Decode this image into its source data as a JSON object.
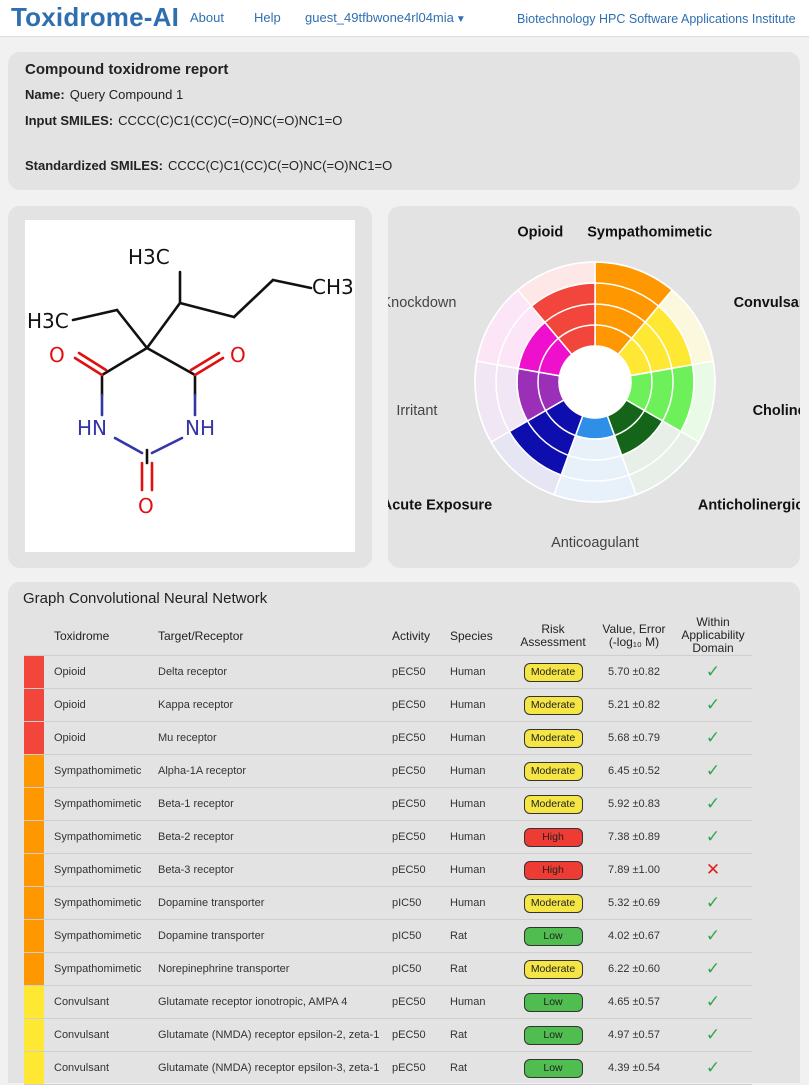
{
  "nav": {
    "brand": "Toxidrome-AI",
    "about": "About",
    "help": "Help",
    "user": "guest_49tfbwone4rl04mia",
    "institute": "Biotechnology HPC Software Applications Institute"
  },
  "report": {
    "title": "Compound toxidrome report",
    "name_label": "Name:",
    "name_value": "Query Compound 1",
    "input_label": "Input SMILES:",
    "input_value": "CCCC(C)C1(CC)C(=O)NC(=O)NC1=O",
    "std_label": "Standardized SMILES:",
    "std_value": "CCCC(C)C1(CC)C(=O)NC(=O)NC1=O"
  },
  "molecule": {
    "atoms": {
      "ch3_top": "H3C",
      "ch3_right": "CH3",
      "ch3_left": "H3C",
      "o_left": "O",
      "o_right": "O",
      "o_bottom": "O",
      "hn": "HN",
      "nh": "NH"
    }
  },
  "chart_data": {
    "type": "polar-area",
    "categories": [
      "Sympathomimetic",
      "Convulsant",
      "Cholinergic",
      "Anticholinergic",
      "Anticoagulant",
      "Acute Exposure",
      "Irritant",
      "Knockdown",
      "Opioid"
    ],
    "bold_categories": [
      "Sympathomimetic",
      "Convulsant",
      "Cholinergic",
      "Anticholinergic",
      "Acute Exposure",
      "Opioid"
    ],
    "rings": 4,
    "values": [
      4,
      3,
      3,
      2,
      1,
      3,
      2,
      2,
      3
    ],
    "colors": [
      "#ff9800",
      "#ffe834",
      "#6ef05a",
      "#14651a",
      "#2e8fe8",
      "#0e0eae",
      "#9c2fb8",
      "#ee10cc",
      "#f2453c"
    ],
    "background_colors": [
      "#fdeccf",
      "#fbf8dd",
      "#e9fbe6",
      "#e8efe8",
      "#e8f0fa",
      "#e5e5f4",
      "#f1e7f4",
      "#fce5f6",
      "#fde7e7"
    ]
  },
  "gcnn": {
    "title": "Graph Convolutional Neural Network",
    "headers": {
      "toxidrome": "Toxidrome",
      "target": "Target/Receptor",
      "activity": "Activity",
      "species": "Species",
      "risk_l1": "Risk",
      "risk_l2": "Assessment",
      "value_l1": "Value, Error",
      "value_l2": "(-log₁₀ M)",
      "within_l1": "Within",
      "within_l2": "Applicability",
      "within_l3": "Domain"
    },
    "rows": [
      {
        "color": "#f2453c",
        "toxidrome": "Opioid",
        "target": "Delta receptor",
        "activity": "pEC50",
        "species": "Human",
        "risk": "Moderate",
        "risk_class": "moderate",
        "value": "5.70",
        "error": "±0.82",
        "within": "✓",
        "within_ok": true
      },
      {
        "color": "#f2453c",
        "toxidrome": "Opioid",
        "target": "Kappa receptor",
        "activity": "pEC50",
        "species": "Human",
        "risk": "Moderate",
        "risk_class": "moderate",
        "value": "5.21",
        "error": "±0.82",
        "within": "✓",
        "within_ok": true
      },
      {
        "color": "#f2453c",
        "toxidrome": "Opioid",
        "target": "Mu receptor",
        "activity": "pEC50",
        "species": "Human",
        "risk": "Moderate",
        "risk_class": "moderate",
        "value": "5.68",
        "error": "±0.79",
        "within": "✓",
        "within_ok": true
      },
      {
        "color": "#ff9800",
        "toxidrome": "Sympathomimetic",
        "target": "Alpha-1A receptor",
        "activity": "pEC50",
        "species": "Human",
        "risk": "Moderate",
        "risk_class": "moderate",
        "value": "6.45",
        "error": "±0.52",
        "within": "✓",
        "within_ok": true
      },
      {
        "color": "#ff9800",
        "toxidrome": "Sympathomimetic",
        "target": "Beta-1 receptor",
        "activity": "pEC50",
        "species": "Human",
        "risk": "Moderate",
        "risk_class": "moderate",
        "value": "5.92",
        "error": "±0.83",
        "within": "✓",
        "within_ok": true
      },
      {
        "color": "#ff9800",
        "toxidrome": "Sympathomimetic",
        "target": "Beta-2 receptor",
        "activity": "pEC50",
        "species": "Human",
        "risk": "High",
        "risk_class": "high",
        "value": "7.38",
        "error": "±0.89",
        "within": "✓",
        "within_ok": true
      },
      {
        "color": "#ff9800",
        "toxidrome": "Sympathomimetic",
        "target": "Beta-3 receptor",
        "activity": "pEC50",
        "species": "Human",
        "risk": "High",
        "risk_class": "high",
        "value": "7.89",
        "error": "±1.00",
        "within": "✕",
        "within_ok": false
      },
      {
        "color": "#ff9800",
        "toxidrome": "Sympathomimetic",
        "target": "Dopamine transporter",
        "activity": "pIC50",
        "species": "Human",
        "risk": "Moderate",
        "risk_class": "moderate",
        "value": "5.32",
        "error": "±0.69",
        "within": "✓",
        "within_ok": true
      },
      {
        "color": "#ff9800",
        "toxidrome": "Sympathomimetic",
        "target": "Dopamine transporter",
        "activity": "pIC50",
        "species": "Rat",
        "risk": "Low",
        "risk_class": "low",
        "value": "4.02",
        "error": "±0.67",
        "within": "✓",
        "within_ok": true
      },
      {
        "color": "#ff9800",
        "toxidrome": "Sympathomimetic",
        "target": "Norepinephrine transporter",
        "activity": "pIC50",
        "species": "Rat",
        "risk": "Moderate",
        "risk_class": "moderate",
        "value": "6.22",
        "error": "±0.60",
        "within": "✓",
        "within_ok": true
      },
      {
        "color": "#ffe834",
        "toxidrome": "Convulsant",
        "target": "Glutamate receptor ionotropic, AMPA 4",
        "activity": "pEC50",
        "species": "Human",
        "risk": "Low",
        "risk_class": "low",
        "value": "4.65",
        "error": "±0.57",
        "within": "✓",
        "within_ok": true
      },
      {
        "color": "#ffe834",
        "toxidrome": "Convulsant",
        "target": "Glutamate (NMDA) receptor epsilon-2, zeta-1",
        "activity": "pEC50",
        "species": "Rat",
        "risk": "Low",
        "risk_class": "low",
        "value": "4.97",
        "error": "±0.57",
        "within": "✓",
        "within_ok": true
      },
      {
        "color": "#ffe834",
        "toxidrome": "Convulsant",
        "target": "Glutamate (NMDA) receptor epsilon-3, zeta-1",
        "activity": "pEC50",
        "species": "Rat",
        "risk": "Low",
        "risk_class": "low",
        "value": "4.39",
        "error": "±0.54",
        "within": "✓",
        "within_ok": true
      }
    ]
  }
}
